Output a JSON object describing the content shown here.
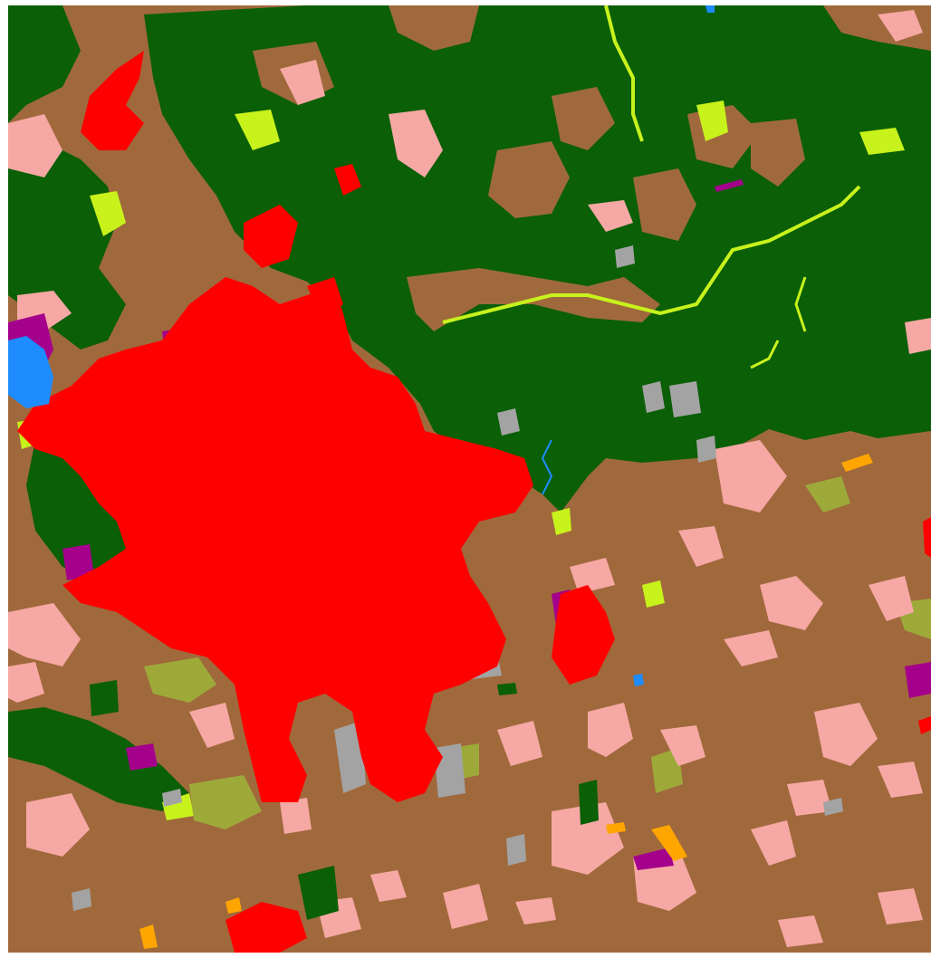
{
  "map": {
    "type": "land-cover classification raster",
    "legend_visible": false,
    "classes": [
      {
        "id": "agriculture",
        "color": "#a0693c"
      },
      {
        "id": "forest",
        "color": "#0a5f07"
      },
      {
        "id": "urban-dense",
        "color": "#ff0000"
      },
      {
        "id": "urban-discontinuous",
        "color": "#f6a8a4"
      },
      {
        "id": "industrial",
        "color": "#a5008b"
      },
      {
        "id": "shrub-grassland",
        "color": "#c8f21c"
      },
      {
        "id": "pasture",
        "color": "#9daa3a"
      },
      {
        "id": "bare-mineral",
        "color": "#a3a3a3"
      },
      {
        "id": "water",
        "color": "#1e8cff"
      },
      {
        "id": "quarry",
        "color": "#ffa500"
      }
    ]
  }
}
